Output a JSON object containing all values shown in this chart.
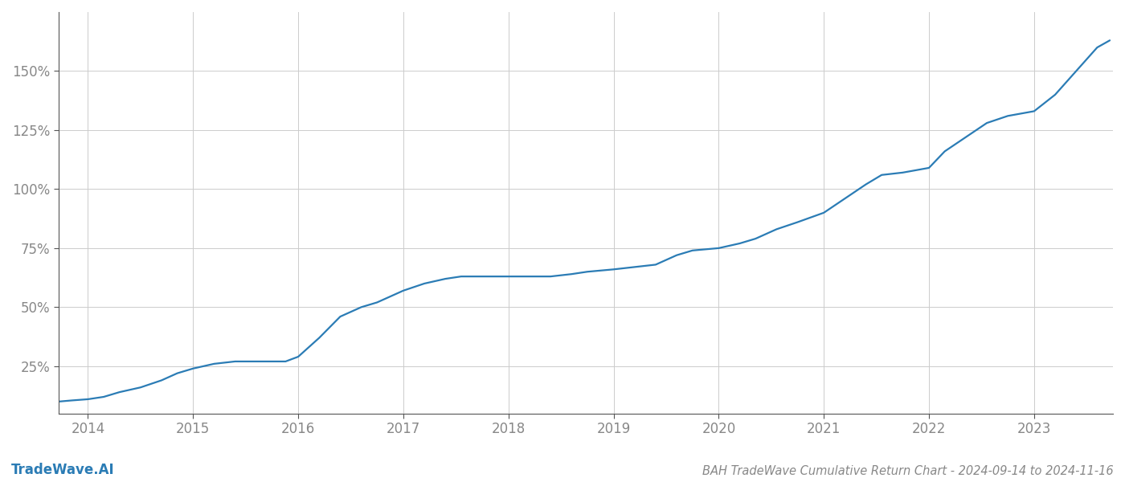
{
  "title": "BAH TradeWave Cumulative Return Chart - 2024-09-14 to 2024-11-16",
  "watermark": "TradeWave.AI",
  "line_color": "#2b7cb5",
  "background_color": "#ffffff",
  "grid_color": "#cccccc",
  "x_years": [
    2014,
    2015,
    2016,
    2017,
    2018,
    2019,
    2020,
    2021,
    2022,
    2023
  ],
  "x_values": [
    2013.72,
    2013.85,
    2014.0,
    2014.15,
    2014.3,
    2014.5,
    2014.7,
    2014.85,
    2015.0,
    2015.2,
    2015.4,
    2015.55,
    2015.72,
    2015.88,
    2016.0,
    2016.2,
    2016.4,
    2016.6,
    2016.75,
    2017.0,
    2017.2,
    2017.4,
    2017.55,
    2017.75,
    2018.0,
    2018.2,
    2018.4,
    2018.6,
    2018.75,
    2019.0,
    2019.2,
    2019.4,
    2019.6,
    2019.75,
    2020.0,
    2020.2,
    2020.35,
    2020.55,
    2020.75,
    2021.0,
    2021.2,
    2021.4,
    2021.55,
    2021.75,
    2022.0,
    2022.15,
    2022.35,
    2022.55,
    2022.75,
    2023.0,
    2023.2,
    2023.4,
    2023.6,
    2023.72
  ],
  "y_values": [
    10,
    10.5,
    11,
    12,
    14,
    16,
    19,
    22,
    24,
    26,
    27,
    27,
    27,
    27,
    29,
    37,
    46,
    50,
    52,
    57,
    60,
    62,
    63,
    63,
    63,
    63,
    63,
    64,
    65,
    66,
    67,
    68,
    72,
    74,
    75,
    77,
    79,
    83,
    86,
    90,
    96,
    102,
    106,
    107,
    109,
    116,
    122,
    128,
    131,
    133,
    140,
    150,
    160,
    163
  ],
  "yticks": [
    25,
    50,
    75,
    100,
    125,
    150
  ],
  "ylim": [
    5,
    175
  ],
  "xlim": [
    2013.72,
    2023.75
  ],
  "title_fontsize": 10.5,
  "watermark_fontsize": 12,
  "tick_fontsize": 12,
  "tick_color": "#888888",
  "spine_color": "#555555",
  "line_width": 1.6
}
